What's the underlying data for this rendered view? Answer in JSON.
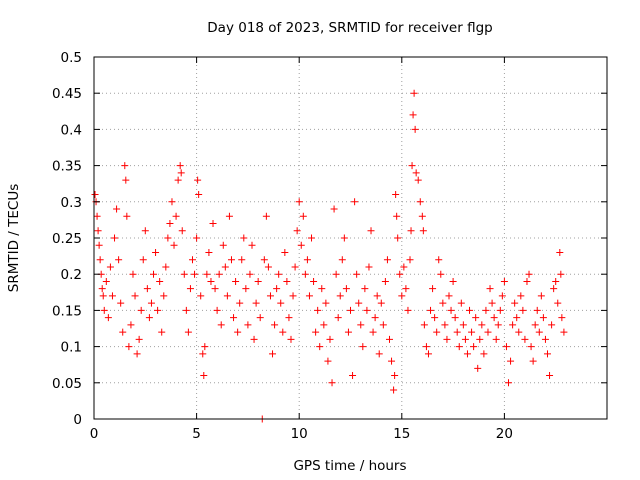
{
  "chart_data": {
    "type": "scatter",
    "title": "Day 018 of 2023, SRMTID for receiver flgp",
    "xlabel": "GPS time / hours",
    "ylabel": "SRMTID / TECUs",
    "xlim": [
      0,
      25
    ],
    "ylim": [
      0,
      0.5
    ],
    "x_ticks": [
      0,
      5,
      10,
      15,
      20
    ],
    "x_tick_labels": [
      "0",
      "5",
      "10",
      "15",
      "20"
    ],
    "y_ticks": [
      0,
      0.05,
      0.1,
      0.15,
      0.2,
      0.25,
      0.3,
      0.35,
      0.4,
      0.45,
      0.5
    ],
    "y_tick_labels": [
      "0",
      "0.05",
      "0.1",
      "0.15",
      "0.2",
      "0.25",
      "0.3",
      "0.35",
      "0.4",
      "0.45",
      "0.5"
    ],
    "grid": true,
    "marker": "+",
    "color": "#ff0000",
    "series": [
      {
        "name": "SRMTID",
        "points": [
          [
            0.05,
            0.31
          ],
          [
            0.1,
            0.3
          ],
          [
            0.15,
            0.28
          ],
          [
            0.2,
            0.26
          ],
          [
            0.25,
            0.24
          ],
          [
            0.3,
            0.22
          ],
          [
            0.35,
            0.2
          ],
          [
            0.4,
            0.18
          ],
          [
            0.45,
            0.17
          ],
          [
            0.5,
            0.15
          ],
          [
            0.6,
            0.19
          ],
          [
            0.7,
            0.14
          ],
          [
            0.8,
            0.21
          ],
          [
            0.9,
            0.17
          ],
          [
            1.0,
            0.25
          ],
          [
            1.1,
            0.29
          ],
          [
            1.2,
            0.22
          ],
          [
            1.3,
            0.16
          ],
          [
            1.4,
            0.12
          ],
          [
            1.5,
            0.35
          ],
          [
            1.55,
            0.33
          ],
          [
            1.6,
            0.28
          ],
          [
            1.7,
            0.1
          ],
          [
            1.8,
            0.13
          ],
          [
            1.9,
            0.2
          ],
          [
            2.0,
            0.17
          ],
          [
            2.1,
            0.09
          ],
          [
            2.2,
            0.11
          ],
          [
            2.3,
            0.15
          ],
          [
            2.4,
            0.22
          ],
          [
            2.5,
            0.26
          ],
          [
            2.6,
            0.18
          ],
          [
            2.7,
            0.14
          ],
          [
            2.8,
            0.16
          ],
          [
            2.9,
            0.2
          ],
          [
            3.0,
            0.23
          ],
          [
            3.1,
            0.15
          ],
          [
            3.2,
            0.19
          ],
          [
            3.3,
            0.12
          ],
          [
            3.4,
            0.17
          ],
          [
            3.5,
            0.21
          ],
          [
            3.6,
            0.25
          ],
          [
            3.7,
            0.27
          ],
          [
            3.8,
            0.3
          ],
          [
            3.9,
            0.24
          ],
          [
            4.0,
            0.28
          ],
          [
            4.1,
            0.33
          ],
          [
            4.2,
            0.35
          ],
          [
            4.25,
            0.34
          ],
          [
            4.3,
            0.26
          ],
          [
            4.4,
            0.2
          ],
          [
            4.5,
            0.15
          ],
          [
            4.6,
            0.12
          ],
          [
            4.7,
            0.18
          ],
          [
            4.8,
            0.22
          ],
          [
            4.9,
            0.2
          ],
          [
            5.0,
            0.25
          ],
          [
            5.05,
            0.33
          ],
          [
            5.1,
            0.31
          ],
          [
            5.2,
            0.17
          ],
          [
            5.3,
            0.09
          ],
          [
            5.35,
            0.06
          ],
          [
            5.4,
            0.1
          ],
          [
            5.5,
            0.2
          ],
          [
            5.6,
            0.23
          ],
          [
            5.7,
            0.19
          ],
          [
            5.8,
            0.27
          ],
          [
            5.9,
            0.18
          ],
          [
            6.0,
            0.15
          ],
          [
            6.1,
            0.2
          ],
          [
            6.2,
            0.13
          ],
          [
            6.3,
            0.24
          ],
          [
            6.4,
            0.21
          ],
          [
            6.5,
            0.17
          ],
          [
            6.6,
            0.28
          ],
          [
            6.7,
            0.22
          ],
          [
            6.8,
            0.14
          ],
          [
            6.9,
            0.19
          ],
          [
            7.0,
            0.12
          ],
          [
            7.1,
            0.16
          ],
          [
            7.2,
            0.22
          ],
          [
            7.3,
            0.25
          ],
          [
            7.4,
            0.18
          ],
          [
            7.5,
            0.13
          ],
          [
            7.6,
            0.2
          ],
          [
            7.7,
            0.24
          ],
          [
            7.8,
            0.11
          ],
          [
            7.9,
            0.16
          ],
          [
            8.0,
            0.19
          ],
          [
            8.1,
            0.14
          ],
          [
            8.2,
            0.0
          ],
          [
            8.3,
            0.22
          ],
          [
            8.4,
            0.28
          ],
          [
            8.5,
            0.21
          ],
          [
            8.6,
            0.17
          ],
          [
            8.7,
            0.09
          ],
          [
            8.8,
            0.13
          ],
          [
            8.9,
            0.18
          ],
          [
            9.0,
            0.2
          ],
          [
            9.1,
            0.16
          ],
          [
            9.2,
            0.12
          ],
          [
            9.3,
            0.23
          ],
          [
            9.4,
            0.19
          ],
          [
            9.5,
            0.14
          ],
          [
            9.6,
            0.11
          ],
          [
            9.7,
            0.17
          ],
          [
            9.8,
            0.21
          ],
          [
            9.9,
            0.26
          ],
          [
            10.0,
            0.3
          ],
          [
            10.1,
            0.24
          ],
          [
            10.2,
            0.28
          ],
          [
            10.3,
            0.2
          ],
          [
            10.4,
            0.22
          ],
          [
            10.5,
            0.17
          ],
          [
            10.6,
            0.25
          ],
          [
            10.7,
            0.19
          ],
          [
            10.8,
            0.12
          ],
          [
            10.9,
            0.15
          ],
          [
            11.0,
            0.1
          ],
          [
            11.1,
            0.18
          ],
          [
            11.2,
            0.13
          ],
          [
            11.3,
            0.16
          ],
          [
            11.4,
            0.08
          ],
          [
            11.5,
            0.11
          ],
          [
            11.6,
            0.05
          ],
          [
            11.7,
            0.29
          ],
          [
            11.8,
            0.2
          ],
          [
            11.9,
            0.14
          ],
          [
            12.0,
            0.17
          ],
          [
            12.1,
            0.22
          ],
          [
            12.2,
            0.25
          ],
          [
            12.3,
            0.18
          ],
          [
            12.4,
            0.12
          ],
          [
            12.5,
            0.15
          ],
          [
            12.6,
            0.06
          ],
          [
            12.7,
            0.3
          ],
          [
            12.8,
            0.2
          ],
          [
            12.9,
            0.16
          ],
          [
            13.0,
            0.13
          ],
          [
            13.1,
            0.1
          ],
          [
            13.2,
            0.18
          ],
          [
            13.3,
            0.15
          ],
          [
            13.4,
            0.21
          ],
          [
            13.5,
            0.26
          ],
          [
            13.6,
            0.12
          ],
          [
            13.7,
            0.14
          ],
          [
            13.8,
            0.17
          ],
          [
            13.9,
            0.09
          ],
          [
            14.0,
            0.16
          ],
          [
            14.1,
            0.13
          ],
          [
            14.2,
            0.19
          ],
          [
            14.3,
            0.22
          ],
          [
            14.4,
            0.11
          ],
          [
            14.5,
            0.08
          ],
          [
            14.6,
            0.04
          ],
          [
            14.65,
            0.06
          ],
          [
            14.7,
            0.31
          ],
          [
            14.75,
            0.28
          ],
          [
            14.8,
            0.25
          ],
          [
            14.9,
            0.2
          ],
          [
            15.0,
            0.17
          ],
          [
            15.1,
            0.21
          ],
          [
            15.2,
            0.18
          ],
          [
            15.3,
            0.15
          ],
          [
            15.4,
            0.22
          ],
          [
            15.45,
            0.26
          ],
          [
            15.5,
            0.35
          ],
          [
            15.55,
            0.42
          ],
          [
            15.6,
            0.45
          ],
          [
            15.65,
            0.4
          ],
          [
            15.7,
            0.34
          ],
          [
            15.8,
            0.33
          ],
          [
            15.9,
            0.3
          ],
          [
            16.0,
            0.28
          ],
          [
            16.05,
            0.26
          ],
          [
            16.1,
            0.13
          ],
          [
            16.2,
            0.1
          ],
          [
            16.3,
            0.09
          ],
          [
            16.4,
            0.15
          ],
          [
            16.5,
            0.18
          ],
          [
            16.6,
            0.14
          ],
          [
            16.7,
            0.12
          ],
          [
            16.8,
            0.22
          ],
          [
            16.9,
            0.2
          ],
          [
            17.0,
            0.16
          ],
          [
            17.1,
            0.13
          ],
          [
            17.2,
            0.11
          ],
          [
            17.3,
            0.17
          ],
          [
            17.4,
            0.15
          ],
          [
            17.5,
            0.19
          ],
          [
            17.6,
            0.14
          ],
          [
            17.7,
            0.12
          ],
          [
            17.8,
            0.1
          ],
          [
            17.9,
            0.16
          ],
          [
            18.0,
            0.13
          ],
          [
            18.1,
            0.11
          ],
          [
            18.2,
            0.09
          ],
          [
            18.3,
            0.15
          ],
          [
            18.4,
            0.12
          ],
          [
            18.5,
            0.1
          ],
          [
            18.6,
            0.14
          ],
          [
            18.7,
            0.07
          ],
          [
            18.8,
            0.11
          ],
          [
            18.9,
            0.13
          ],
          [
            19.0,
            0.09
          ],
          [
            19.1,
            0.15
          ],
          [
            19.2,
            0.12
          ],
          [
            19.3,
            0.18
          ],
          [
            19.4,
            0.16
          ],
          [
            19.5,
            0.14
          ],
          [
            19.6,
            0.11
          ],
          [
            19.7,
            0.13
          ],
          [
            19.8,
            0.15
          ],
          [
            19.9,
            0.17
          ],
          [
            20.0,
            0.19
          ],
          [
            20.1,
            0.1
          ],
          [
            20.2,
            0.05
          ],
          [
            20.3,
            0.08
          ],
          [
            20.4,
            0.13
          ],
          [
            20.5,
            0.16
          ],
          [
            20.6,
            0.14
          ],
          [
            20.7,
            0.12
          ],
          [
            20.8,
            0.17
          ],
          [
            20.9,
            0.15
          ],
          [
            21.0,
            0.11
          ],
          [
            21.1,
            0.19
          ],
          [
            21.2,
            0.2
          ],
          [
            21.3,
            0.1
          ],
          [
            21.4,
            0.08
          ],
          [
            21.5,
            0.13
          ],
          [
            21.6,
            0.15
          ],
          [
            21.7,
            0.12
          ],
          [
            21.8,
            0.17
          ],
          [
            21.9,
            0.14
          ],
          [
            22.0,
            0.11
          ],
          [
            22.1,
            0.09
          ],
          [
            22.2,
            0.06
          ],
          [
            22.3,
            0.13
          ],
          [
            22.4,
            0.18
          ],
          [
            22.5,
            0.19
          ],
          [
            22.6,
            0.16
          ],
          [
            22.7,
            0.23
          ],
          [
            22.75,
            0.2
          ],
          [
            22.8,
            0.14
          ],
          [
            22.9,
            0.12
          ]
        ]
      }
    ]
  }
}
